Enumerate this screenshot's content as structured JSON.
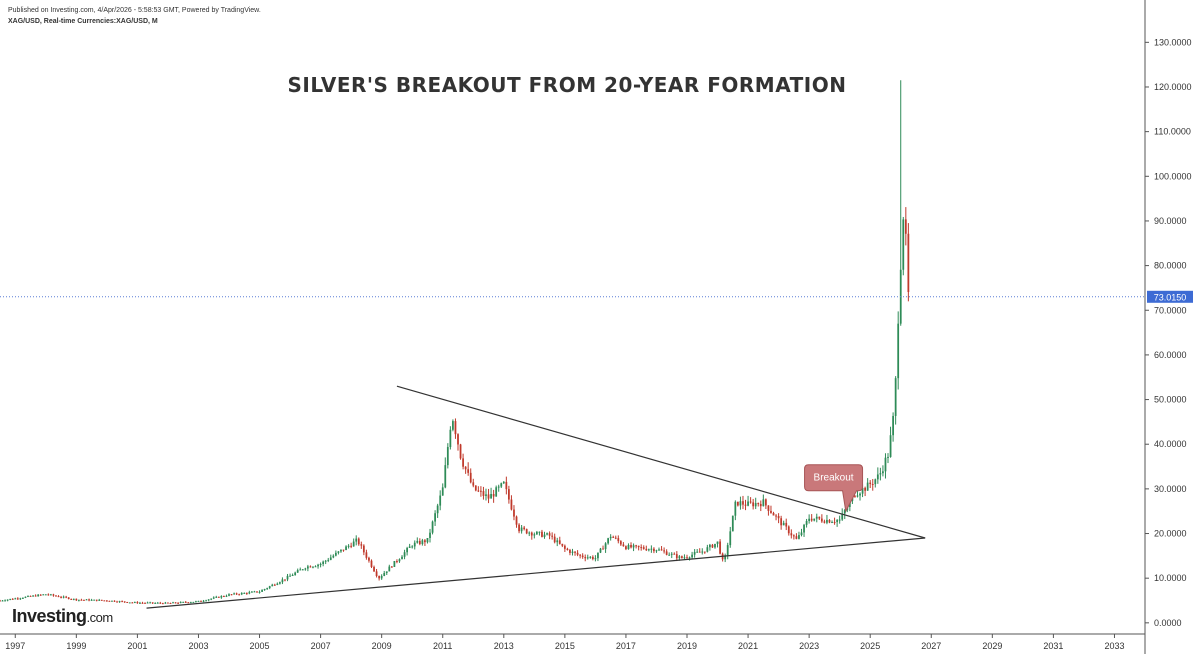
{
  "header": {
    "published": "Published on Investing.com, 4/Apr/2026 - 5:58:53 GMT, Powered by TradingView.",
    "symbol": "XAG/USD, Real-time Currencies:XAG/USD, M"
  },
  "logo": {
    "name": "Investing",
    "suffix": ".com"
  },
  "chart_data": {
    "type": "candlestick",
    "title": "SILVER'S BREAKOUT FROM 20-YEAR FORMATION",
    "interval": "M",
    "xlim": [
      1996.5,
      2034.0
    ],
    "ylim": [
      -2.5,
      135
    ],
    "x_tick_labels": [
      "1997",
      "1999",
      "2001",
      "2003",
      "2005",
      "2007",
      "2009",
      "2011",
      "2013",
      "2015",
      "2017",
      "2019",
      "2021",
      "2023",
      "2025",
      "2027",
      "2029",
      "2031",
      "2033"
    ],
    "y_tick_labels": [
      "0.0000",
      "10.0000",
      "20.0000",
      "30.0000",
      "40.0000",
      "50.0000",
      "60.0000",
      "70.0000",
      "80.0000",
      "90.0000",
      "100.0000",
      "110.0000",
      "120.0000",
      "130.0000"
    ],
    "current_price": 73.015,
    "current_price_label": "73.0150",
    "trendlines": [
      {
        "name": "upper",
        "from": [
          2009.5,
          53
        ],
        "to": [
          2026.8,
          19
        ]
      },
      {
        "name": "lower",
        "from": [
          2001.3,
          3.3
        ],
        "to": [
          2026.8,
          19
        ]
      }
    ],
    "annotations": [
      {
        "text": "Breakout",
        "x": 2023.8,
        "y": 32.5,
        "points_to": [
          2024.2,
          25
        ]
      }
    ],
    "colors": {
      "up": "#2e8b57",
      "down": "#c0392b",
      "trendline": "#333333",
      "price_line": "#5b7fd6",
      "price_label_bg": "#3d6bd4",
      "callout_bg": "#c9787a"
    },
    "anchors": [
      [
        1996.5,
        5.0
      ],
      [
        1998.0,
        6.4
      ],
      [
        1999.0,
        5.2
      ],
      [
        2000.0,
        5.0
      ],
      [
        2001.0,
        4.5
      ],
      [
        2002.0,
        4.4
      ],
      [
        2003.0,
        4.8
      ],
      [
        2004.0,
        6.3
      ],
      [
        2005.0,
        7.0
      ],
      [
        2006.0,
        10.5
      ],
      [
        2006.5,
        12.5
      ],
      [
        2007.0,
        13.2
      ],
      [
        2008.2,
        18.5
      ],
      [
        2008.9,
        10.0
      ],
      [
        2009.5,
        14.0
      ],
      [
        2010.0,
        17.5
      ],
      [
        2010.5,
        18.5
      ],
      [
        2011.0,
        30.0
      ],
      [
        2011.3,
        47.0
      ],
      [
        2011.6,
        37.0
      ],
      [
        2012.0,
        30.0
      ],
      [
        2012.5,
        28.0
      ],
      [
        2013.0,
        31.0
      ],
      [
        2013.3,
        25.0
      ],
      [
        2013.5,
        21.0
      ],
      [
        2014.0,
        20.0
      ],
      [
        2014.5,
        19.5
      ],
      [
        2015.0,
        16.5
      ],
      [
        2015.5,
        15.0
      ],
      [
        2016.0,
        14.5
      ],
      [
        2016.5,
        19.5
      ],
      [
        2017.0,
        17.0
      ],
      [
        2018.0,
        16.5
      ],
      [
        2018.8,
        14.5
      ],
      [
        2019.5,
        16.0
      ],
      [
        2020.0,
        18.0
      ],
      [
        2020.2,
        13.0
      ],
      [
        2020.6,
        27.0
      ],
      [
        2021.0,
        26.5
      ],
      [
        2021.5,
        27.0
      ],
      [
        2022.0,
        23.0
      ],
      [
        2022.6,
        18.5
      ],
      [
        2023.0,
        23.5
      ],
      [
        2023.6,
        23.0
      ],
      [
        2024.0,
        23.0
      ],
      [
        2024.5,
        29.0
      ],
      [
        2024.9,
        30.5
      ],
      [
        2025.3,
        33.0
      ],
      [
        2025.6,
        38.0
      ],
      [
        2025.8,
        48.0
      ],
      [
        2025.95,
        75.0
      ],
      [
        2026.1,
        94.0
      ],
      [
        2026.25,
        73.0
      ]
    ],
    "spike": {
      "x": 2026.0,
      "high": 121.5
    }
  }
}
